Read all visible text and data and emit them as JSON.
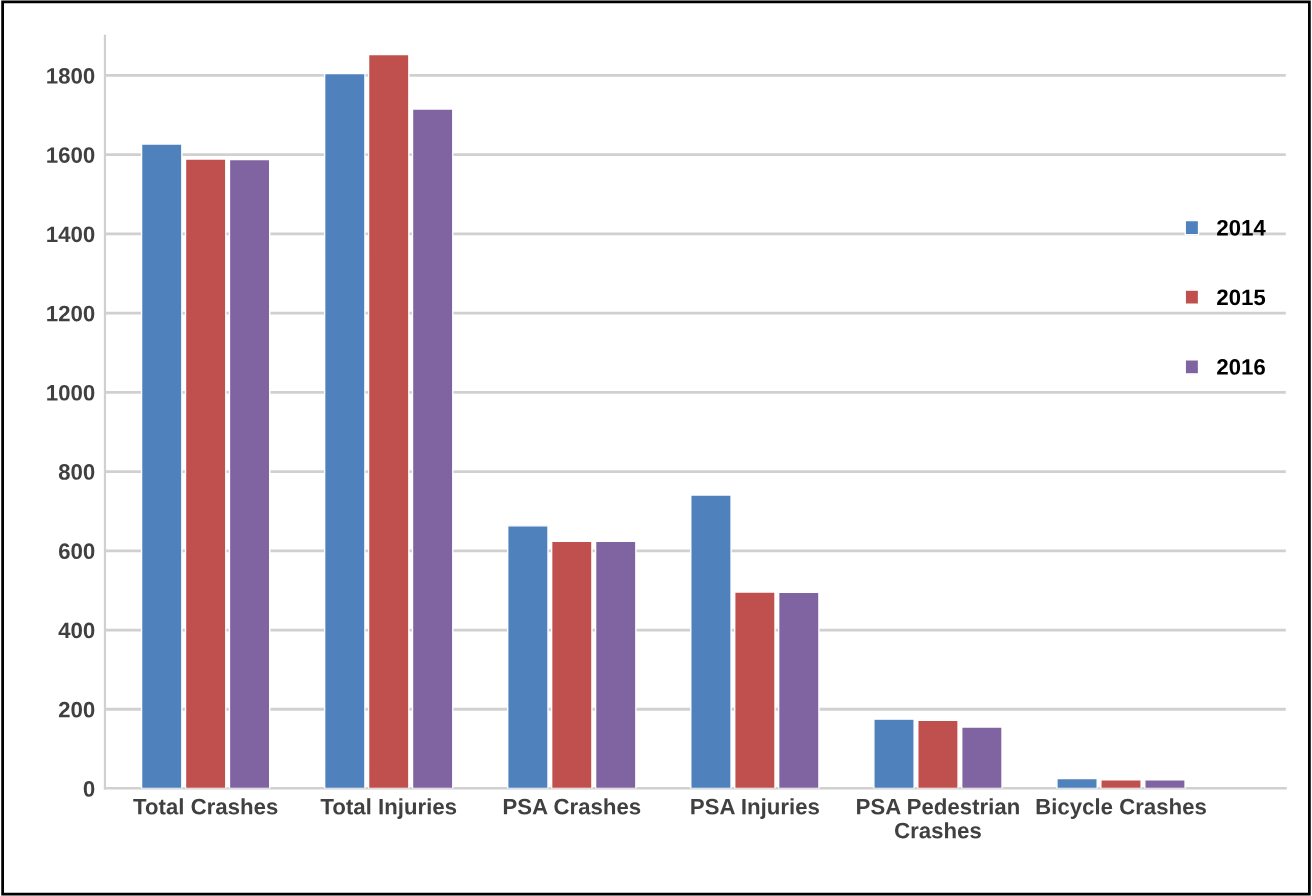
{
  "chart_data": {
    "type": "bar",
    "categories": [
      "Total Crashes",
      "Total Injuries",
      "PSA Crashes",
      "PSA Injuries",
      "PSA Pedestrian\nCrashes",
      "Bicycle Crashes"
    ],
    "series": [
      {
        "name": "2014",
        "color": "#4f81bd",
        "values": [
          1627,
          1805,
          663,
          741,
          175,
          25
        ]
      },
      {
        "name": "2015",
        "color": "#c0504d",
        "values": [
          1589,
          1853,
          624,
          496,
          172,
          22
        ]
      },
      {
        "name": "2016",
        "color": "#8064a2",
        "values": [
          1588,
          1715,
          624,
          495,
          155,
          22
        ]
      }
    ],
    "ylim": [
      0,
      1900
    ],
    "yticks": [
      0,
      200,
      400,
      600,
      800,
      1000,
      1200,
      1400,
      1600,
      1800
    ],
    "grid": "y",
    "legend": "right"
  }
}
